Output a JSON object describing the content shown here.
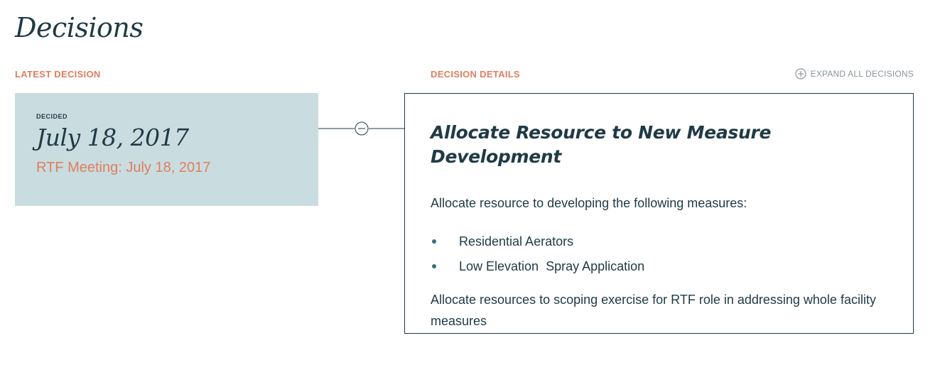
{
  "page": {
    "title": "Decisions"
  },
  "latest": {
    "section_label": "LATEST DECISION",
    "decided_label": "DECIDED",
    "date": "July 18, 2017",
    "meeting_link": "RTF Meeting: July 18, 2017"
  },
  "details": {
    "section_label": "DECISION DETAILS",
    "expand_all_label": "EXPAND ALL DECISIONS",
    "title": "Allocate Resource to New Measure Development",
    "intro": "Allocate resource to developing the following measures:",
    "items": [
      {
        "label": "Residential Aerators"
      },
      {
        "label": "Low Elevation  Spray Application"
      }
    ],
    "outro": "Allocate resources to scoping exercise for RTF role in addressing whole facility measures"
  },
  "icons": {
    "expand_all": "plus-circle-icon",
    "collapse": "minus-circle-icon"
  },
  "colors": {
    "heading": "#1f3a45",
    "accent": "#e07e5e",
    "card_bg": "#c9dce0",
    "muted": "#8a959a"
  }
}
